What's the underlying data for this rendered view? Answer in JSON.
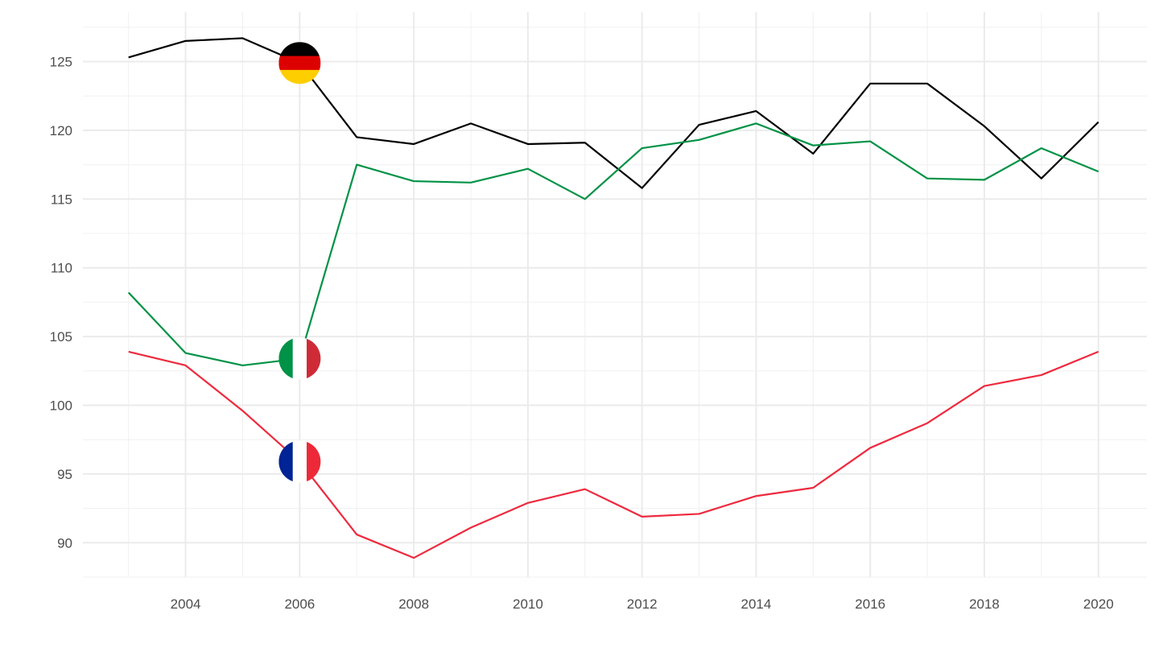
{
  "chart_data": {
    "type": "line",
    "title": "",
    "xlabel": "",
    "ylabel": "",
    "x": [
      2003,
      2004,
      2005,
      2006,
      2007,
      2008,
      2009,
      2010,
      2011,
      2012,
      2013,
      2014,
      2015,
      2016,
      2017,
      2018,
      2019,
      2020
    ],
    "xlim": [
      2002.2,
      2020.85
    ],
    "ylim": [
      87.5,
      128.6
    ],
    "x_ticks": [
      "2004",
      "2006",
      "2008",
      "2010",
      "2012",
      "2014",
      "2016",
      "2018",
      "2020"
    ],
    "y_ticks": [
      "90",
      "95",
      "100",
      "105",
      "110",
      "115",
      "120",
      "125"
    ],
    "grid": true,
    "legend": "none (flag markers at 2006)",
    "series": [
      {
        "flag_icon": "germany-flag",
        "color": "#000000",
        "values": [
          125.3,
          126.5,
          126.7,
          124.9,
          119.5,
          119.0,
          120.5,
          119.0,
          119.1,
          115.8,
          120.4,
          121.4,
          118.3,
          123.4,
          123.4,
          120.3,
          116.5,
          120.6
        ]
      },
      {
        "flag_icon": "italy-flag",
        "color": "#009246",
        "values": [
          108.2,
          103.8,
          102.9,
          103.4,
          117.5,
          116.3,
          116.2,
          117.2,
          115.0,
          118.7,
          119.3,
          120.5,
          118.9,
          119.2,
          116.5,
          116.4,
          118.7,
          117.0
        ]
      },
      {
        "flag_icon": "france-flag",
        "color": "#EE2A3E",
        "values": [
          103.9,
          102.9,
          99.6,
          95.9,
          90.6,
          88.9,
          91.1,
          92.9,
          93.9,
          91.9,
          92.1,
          93.4,
          94.0,
          96.9,
          98.7,
          101.4,
          102.2,
          103.9
        ]
      }
    ],
    "marker_year": 2006
  }
}
